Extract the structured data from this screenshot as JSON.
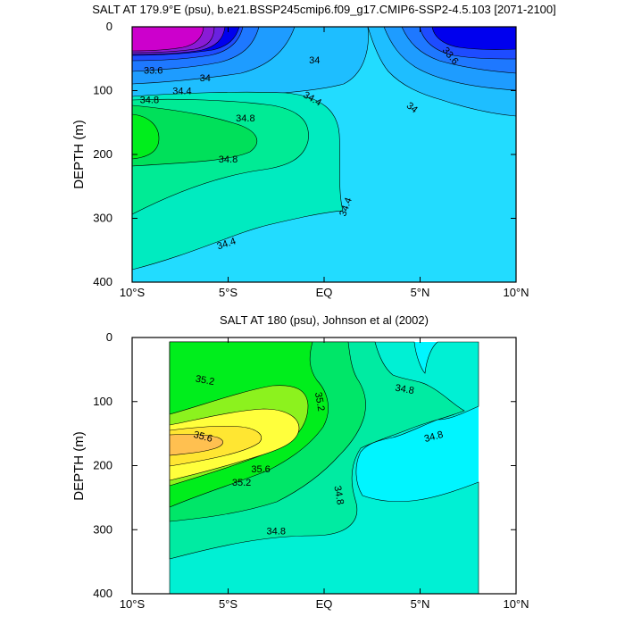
{
  "chart_data": [
    {
      "type": "contour",
      "title": "SALT AT 179.9°E (psu), b.e21.BSSP245cmip6.f09_g17.CMIP6-SSP2-4.5.103 [2071-2100]",
      "ylabel": "DEPTH (m)",
      "xlabel": "",
      "xlim": [
        -10,
        10
      ],
      "ylim": [
        400,
        0
      ],
      "xticks": [
        {
          "value": -10,
          "label": "10°S"
        },
        {
          "value": -5,
          "label": "5°S"
        },
        {
          "value": 0,
          "label": "EQ"
        },
        {
          "value": 5,
          "label": "5°N"
        },
        {
          "value": 10,
          "label": "10°N"
        }
      ],
      "yticks": [
        {
          "value": 0,
          "label": "0"
        },
        {
          "value": 100,
          "label": "100"
        },
        {
          "value": 200,
          "label": "200"
        },
        {
          "value": 300,
          "label": "300"
        },
        {
          "value": 400,
          "label": "400"
        }
      ],
      "level_colors": [
        {
          "level": 32.8,
          "color": "#cc00cc"
        },
        {
          "level": 33.0,
          "color": "#8a1bd6"
        },
        {
          "level": 33.2,
          "color": "#6a22e0"
        },
        {
          "level": 33.4,
          "color": "#0000ee"
        },
        {
          "level": 33.6,
          "color": "#1e4cff"
        },
        {
          "level": 33.8,
          "color": "#1e78ff"
        },
        {
          "level": 34.0,
          "color": "#1e9cff"
        },
        {
          "level": 34.2,
          "color": "#1ebeff"
        },
        {
          "level": 34.4,
          "color": "#22dcff"
        },
        {
          "level": 34.6,
          "color": "#00ebc0"
        },
        {
          "level": 34.8,
          "color": "#00eb95"
        },
        {
          "level": 35.0,
          "color": "#00e05a"
        },
        {
          "level": 35.2,
          "color": "#00ee1c"
        }
      ],
      "contour_labels": [
        {
          "text": "33.6",
          "x": -8.9,
          "y": 68
        },
        {
          "text": "34",
          "x": -6.2,
          "y": 80
        },
        {
          "text": "34",
          "x": -0.5,
          "y": 52
        },
        {
          "text": "33.6",
          "x": 6.6,
          "y": 45,
          "angle": 50
        },
        {
          "text": "34.4",
          "x": -7.4,
          "y": 100
        },
        {
          "text": "34.8",
          "x": -9.1,
          "y": 114
        },
        {
          "text": "34.4",
          "x": -0.6,
          "y": 112,
          "angle": 30
        },
        {
          "text": "34",
          "x": 4.6,
          "y": 126,
          "angle": 38
        },
        {
          "text": "34.8",
          "x": -4.1,
          "y": 143
        },
        {
          "text": "34.8",
          "x": -5.0,
          "y": 207
        },
        {
          "text": "34.4",
          "x": 1.1,
          "y": 282,
          "angle": -70
        },
        {
          "text": "34.4",
          "x": -5.1,
          "y": 339,
          "angle": -18
        }
      ]
    },
    {
      "type": "contour",
      "title": "SALT AT 180 (psu), Johnson et al (2002)",
      "ylabel": "DEPTH (m)",
      "xlabel": "",
      "xlim": [
        -10,
        10
      ],
      "ylim": [
        400,
        0
      ],
      "data_extent_x": [
        -8,
        8
      ],
      "xticks": [
        {
          "value": -10,
          "label": "10°S"
        },
        {
          "value": -5,
          "label": "5°S"
        },
        {
          "value": 0,
          "label": "EQ"
        },
        {
          "value": 5,
          "label": "5°N"
        },
        {
          "value": 10,
          "label": "10°N"
        }
      ],
      "yticks": [
        {
          "value": 0,
          "label": "0"
        },
        {
          "value": 100,
          "label": "100"
        },
        {
          "value": 200,
          "label": "200"
        },
        {
          "value": 300,
          "label": "300"
        },
        {
          "value": 400,
          "label": "400"
        }
      ],
      "level_colors": [
        {
          "level": 34.6,
          "color": "#00f5ff"
        },
        {
          "level": 34.8,
          "color": "#00f0d4"
        },
        {
          "level": 35.0,
          "color": "#00eba2"
        },
        {
          "level": 35.2,
          "color": "#00e668"
        },
        {
          "level": 35.4,
          "color": "#00ee1c"
        },
        {
          "level": 35.6,
          "color": "#8cf21e"
        },
        {
          "level": 35.8,
          "color": "#ffff3c"
        },
        {
          "level": 36.0,
          "color": "#ffe632"
        },
        {
          "level": 36.2,
          "color": "#ffc050"
        }
      ],
      "contour_labels": [
        {
          "text": "35.2",
          "x": -6.2,
          "y": 66,
          "angle": 10
        },
        {
          "text": "35.2",
          "x": -0.2,
          "y": 100,
          "angle": 80
        },
        {
          "text": "34.8",
          "x": 4.2,
          "y": 80,
          "angle": 10
        },
        {
          "text": "35.6",
          "x": -6.3,
          "y": 154,
          "angle": 15
        },
        {
          "text": "34.8",
          "x": 5.7,
          "y": 154,
          "angle": -15
        },
        {
          "text": "35.6",
          "x": -3.3,
          "y": 205
        },
        {
          "text": "35.2",
          "x": -4.3,
          "y": 226
        },
        {
          "text": "34.8",
          "x": 0.8,
          "y": 246,
          "angle": 80
        },
        {
          "text": "34.8",
          "x": -2.5,
          "y": 302
        }
      ]
    }
  ]
}
